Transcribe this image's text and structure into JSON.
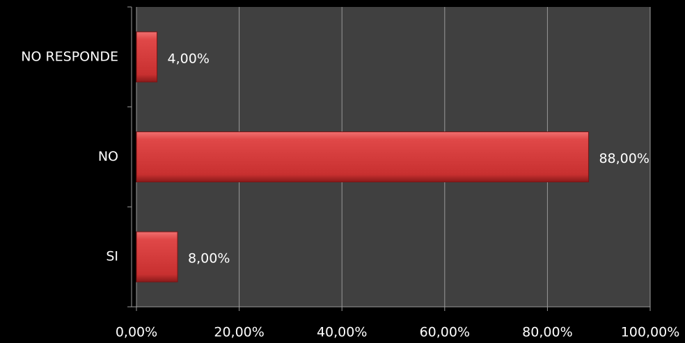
{
  "chart_data": {
    "type": "barh",
    "categories": [
      "SI",
      "NO",
      "NO RESPONDE"
    ],
    "values": [
      8,
      88,
      4
    ],
    "value_labels": [
      "8,00%",
      "88,00%",
      "4,00%"
    ],
    "color": "#d63a3a",
    "xlim": [
      0,
      100
    ],
    "xticks": [
      {
        "value": 0,
        "label": "0,00%"
      },
      {
        "value": 20,
        "label": "20,00%"
      },
      {
        "value": 40,
        "label": "40,00%"
      },
      {
        "value": 60,
        "label": "60,00%"
      },
      {
        "value": 80,
        "label": "80,00%"
      },
      {
        "value": 100,
        "label": "100,00%"
      }
    ],
    "grid": true
  }
}
